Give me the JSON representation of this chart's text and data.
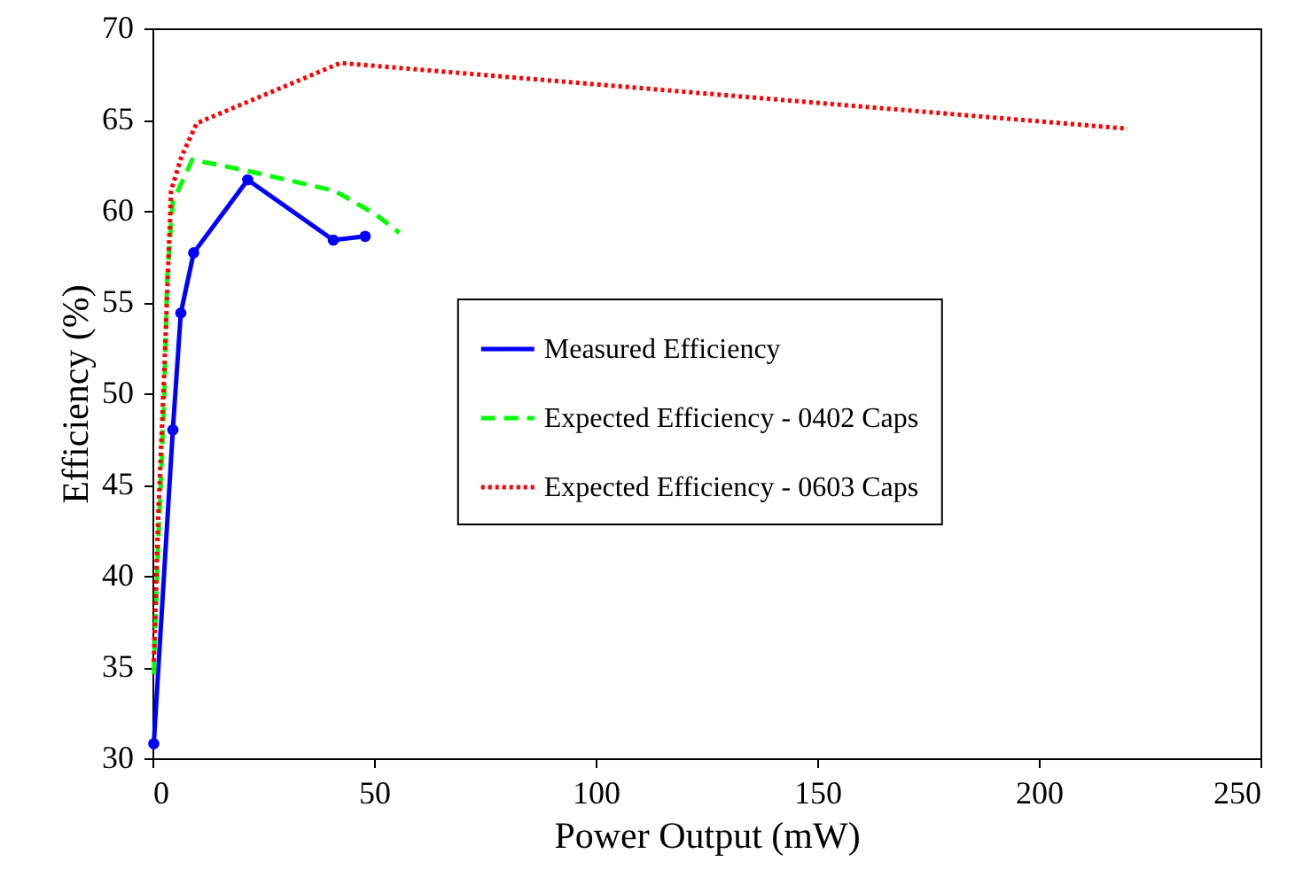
{
  "chart_data": {
    "type": "line",
    "xlabel": "Power Output (mW)",
    "ylabel": "Efficiency (%)",
    "xlim": [
      0,
      250
    ],
    "xticks": [
      0,
      50,
      100,
      150,
      200,
      250
    ],
    "ylim": [
      30,
      70
    ],
    "yticks": [
      30,
      35,
      40,
      45,
      50,
      55,
      60,
      65,
      70
    ],
    "grid": false,
    "legend": "center right",
    "series": [
      {
        "name": "Measured Efficiency",
        "color": "#0000ff",
        "line_style": "solid",
        "marker": "circle",
        "x": [
          0.3,
          4.6,
          6.4,
          9.3,
          21.5,
          40.8,
          48.0
        ],
        "values": [
          30.8,
          48.0,
          54.4,
          57.7,
          61.7,
          58.4,
          58.6
        ]
      },
      {
        "name": "Expected Efficiency - 0402 Caps",
        "color": "#00ff00",
        "line_style": "dashed",
        "marker": "none",
        "x": [
          0.3,
          1.3,
          2.7,
          3.3,
          4.6,
          9.0,
          21.2,
          41.1,
          50.4,
          55.7
        ],
        "values": [
          34.6,
          41.7,
          49.8,
          56.2,
          60.5,
          62.8,
          62.2,
          61.1,
          59.8,
          58.8
        ]
      },
      {
        "name": "Expected Efficiency - 0603 Caps",
        "color": "#ff0000",
        "line_style": "dotted",
        "marker": "none",
        "x": [
          0.3,
          1.3,
          2.7,
          4.2,
          6.6,
          10,
          42.4,
          220
        ],
        "values": [
          35.3,
          43.3,
          51.4,
          61.1,
          63.0,
          64.8,
          68.1,
          64.5
        ]
      }
    ]
  }
}
